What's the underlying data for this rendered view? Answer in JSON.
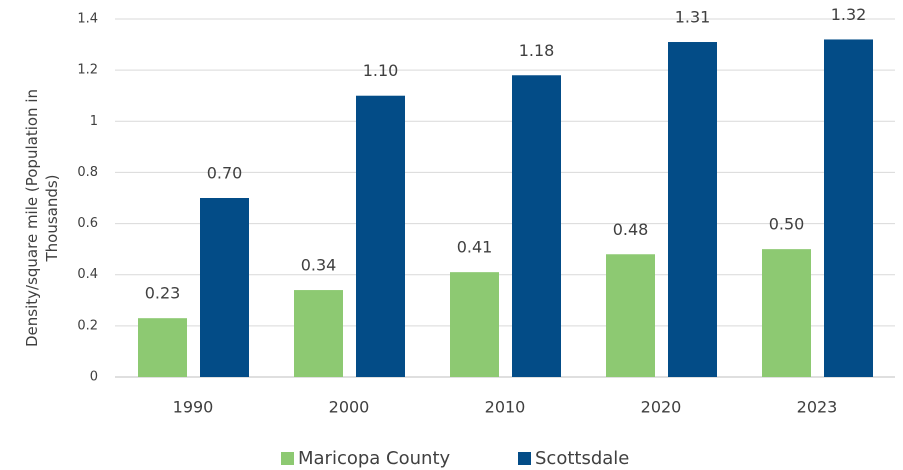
{
  "chart_data": {
    "type": "bar",
    "ylabel": "Density/square mile (Population in Thousands)",
    "categories": [
      "1990",
      "2000",
      "2010",
      "2020",
      "2023"
    ],
    "series": [
      {
        "name": "Maricopa County",
        "color": "#8dc972",
        "values": [
          0.23,
          0.34,
          0.41,
          0.48,
          0.5
        ],
        "value_labels": [
          "0.23",
          "0.34",
          "0.41",
          "0.48",
          "0.50"
        ]
      },
      {
        "name": "Scottsdale",
        "color": "#034c87",
        "values": [
          0.7,
          1.1,
          1.18,
          1.31,
          1.32
        ],
        "value_labels": [
          "0.70",
          "1.10",
          "1.18",
          "1.31",
          "1.32"
        ]
      }
    ],
    "ylim": [
      0,
      1.4
    ],
    "yticks": [
      0,
      0.2,
      0.4,
      0.6,
      0.8,
      1,
      1.2,
      1.4
    ],
    "grid": true,
    "legend": "bottom"
  }
}
